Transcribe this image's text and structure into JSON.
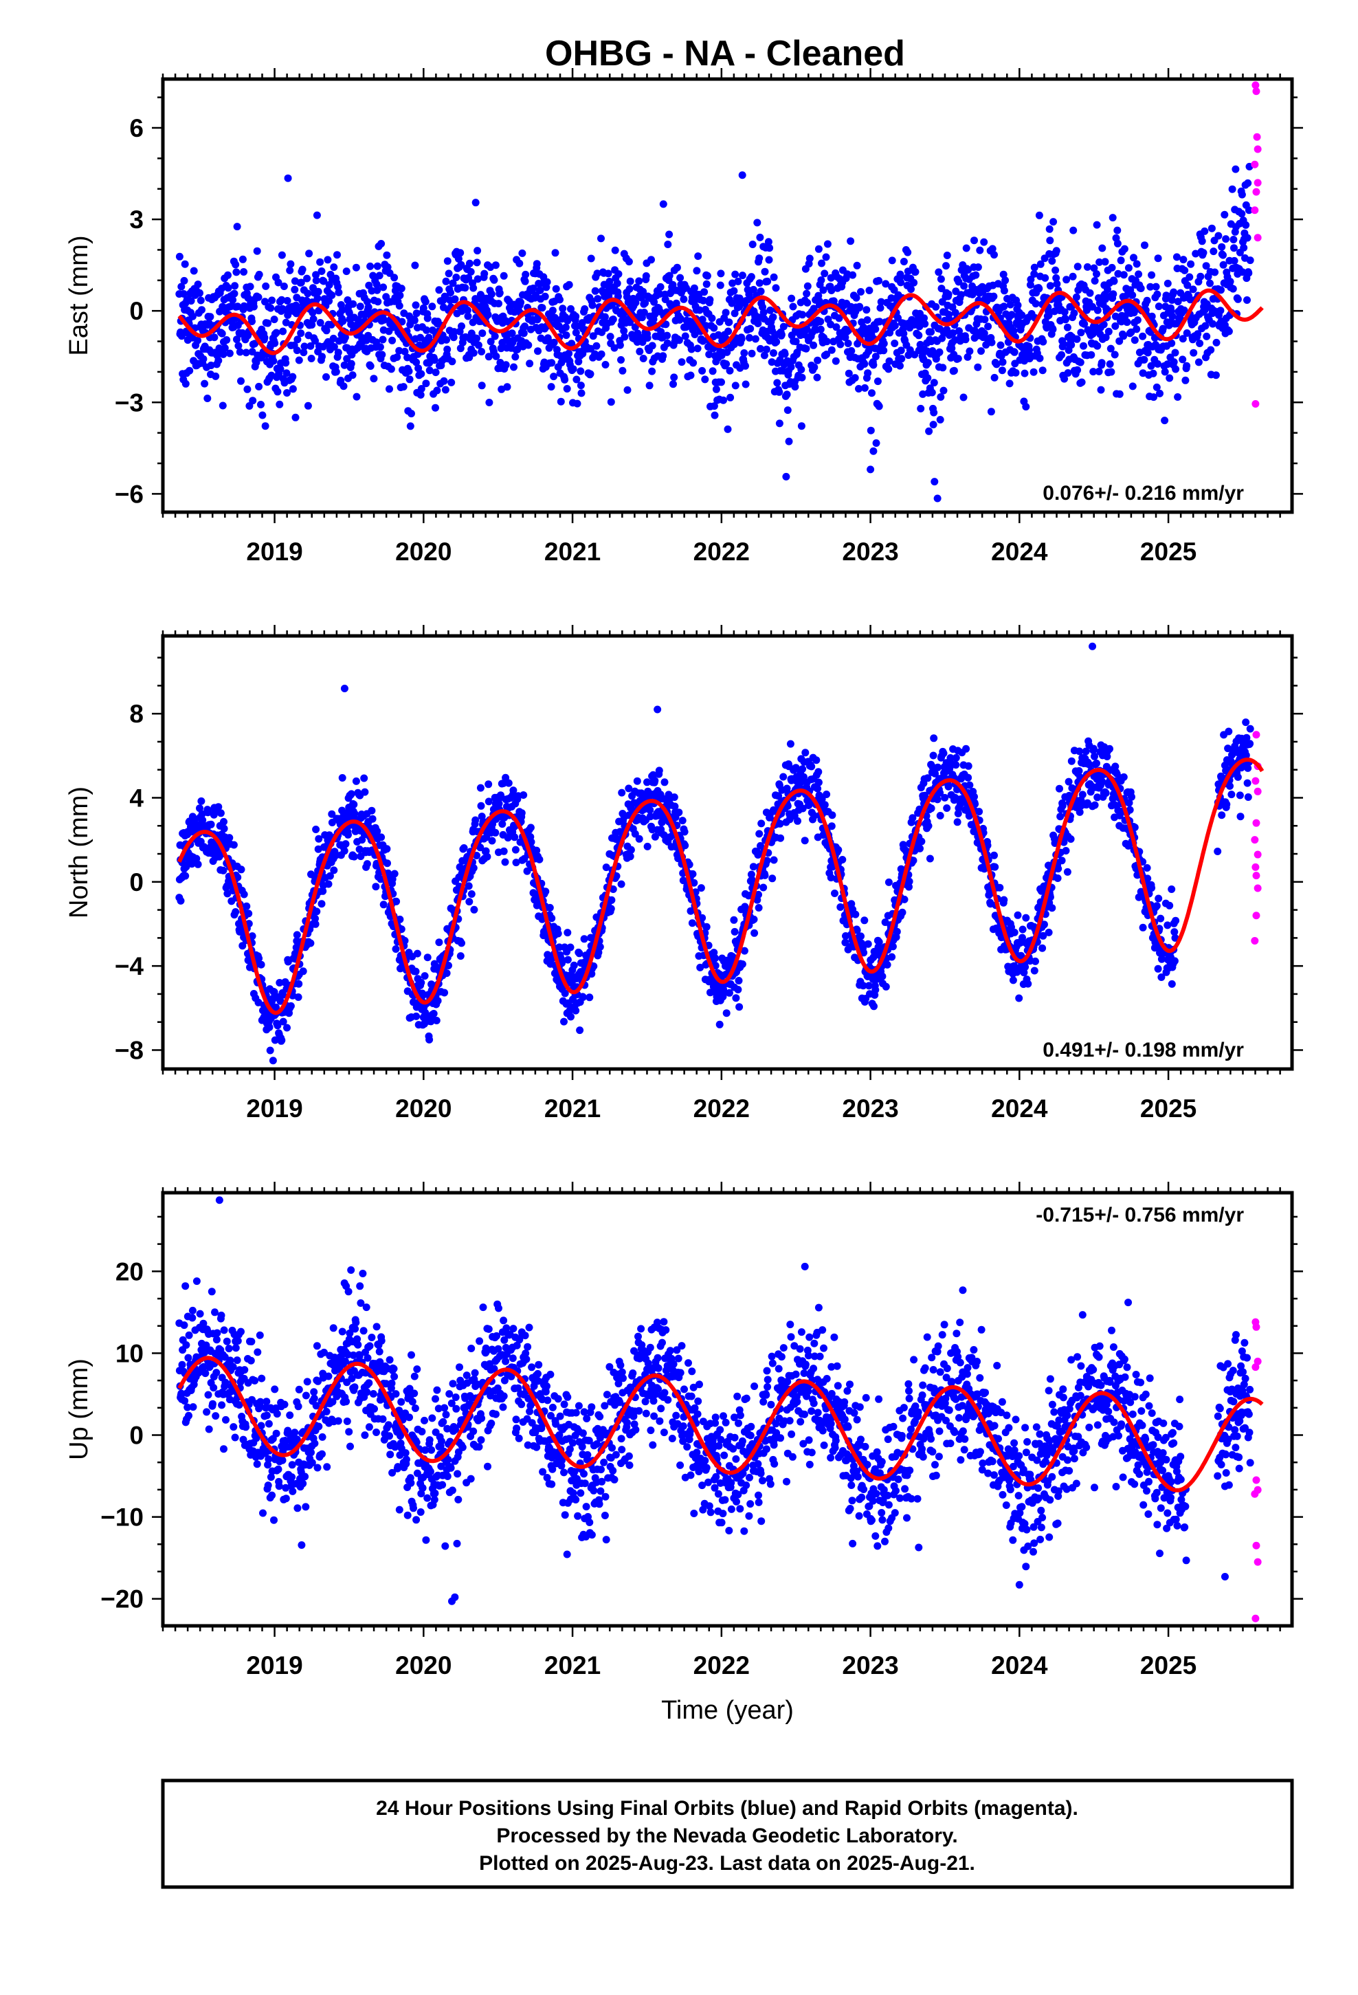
{
  "title": "OHBG  - NA - Cleaned",
  "footer": {
    "line1": "24 Hour Positions Using Final Orbits (blue) and Rapid Orbits (magenta).",
    "line2": "Processed by the Nevada Geodetic Laboratory.",
    "line3": "Plotted on 2025-Aug-23. Last data on 2025-Aug-21."
  },
  "colors": {
    "final_orbits": "#0000ff",
    "rapid_orbits": "#ff00ff",
    "model_fit": "#ff0000",
    "frame": "#000000"
  },
  "chart_data": [
    {
      "type": "scatter",
      "component": "east",
      "ylabel": "East (mm)",
      "xlabel": "",
      "xlim": [
        2018.25,
        2025.83
      ],
      "ylim": [
        -6.6,
        7.6
      ],
      "xticks": [
        2019,
        2020,
        2021,
        2022,
        2023,
        2024,
        2025
      ],
      "xtick_labels": [
        "2019",
        "2020",
        "2021",
        "2022",
        "2023",
        "2024",
        "2025"
      ],
      "yticks": [
        -6,
        -3,
        0,
        3,
        6
      ],
      "ytick_labels": [
        "−6",
        "−3",
        "0",
        "3",
        "6"
      ],
      "rate_label": "0.076+/- 0.216 mm/yr",
      "rate_position": "bottom-right",
      "data_start": 2018.36,
      "data_end": 2025.63,
      "final_end": 2025.55,
      "model": {
        "trend_mm_per_yr": 0.076,
        "offset": -0.3,
        "annual_sin": 0.15,
        "annual_cos": -0.3,
        "semiannual_sin": 0.0,
        "semiannual_cos": -0.55
      },
      "scatter_sigma": 1.05,
      "anomalies": [
        {
          "from": 2022.3,
          "to": 2022.55,
          "shift": -1.6
        },
        {
          "from": 2023.28,
          "to": 2023.5,
          "shift": -1.8
        },
        {
          "from": 2024.22,
          "to": 2024.42,
          "shift": -1.3
        },
        {
          "from": 2025.38,
          "to": 2025.63,
          "shift": 2.6
        }
      ],
      "rapid_points": [
        {
          "x": 2025.585,
          "y": 7.4
        },
        {
          "x": 2025.59,
          "y": 7.2
        },
        {
          "x": 2025.595,
          "y": 5.7
        },
        {
          "x": 2025.6,
          "y": 5.3
        },
        {
          "x": 2025.58,
          "y": 4.8
        },
        {
          "x": 2025.6,
          "y": 4.2
        },
        {
          "x": 2025.59,
          "y": 3.9
        },
        {
          "x": 2025.58,
          "y": 3.3
        },
        {
          "x": 2025.6,
          "y": 2.4
        },
        {
          "x": 2025.585,
          "y": -3.05
        }
      ],
      "notable_points": [
        {
          "x": 2019.09,
          "y": 4.35
        },
        {
          "x": 2022.14,
          "y": 4.45
        },
        {
          "x": 2023.02,
          "y": -4.6
        },
        {
          "x": 2023.0,
          "y": -5.2
        },
        {
          "x": 2023.43,
          "y": -5.6
        },
        {
          "x": 2023.45,
          "y": -6.15
        },
        {
          "x": 2020.35,
          "y": 3.55
        },
        {
          "x": 2021.61,
          "y": 3.5
        }
      ]
    },
    {
      "type": "scatter",
      "component": "north",
      "ylabel": "North (mm)",
      "xlabel": "",
      "xlim": [
        2018.25,
        2025.83
      ],
      "ylim": [
        -8.9,
        11.7
      ],
      "xticks": [
        2019,
        2020,
        2021,
        2022,
        2023,
        2024,
        2025
      ],
      "xtick_labels": [
        "2019",
        "2020",
        "2021",
        "2022",
        "2023",
        "2024",
        "2025"
      ],
      "yticks": [
        -8,
        -4,
        0,
        4,
        8
      ],
      "ytick_labels": [
        "−8",
        "−4",
        "0",
        "4",
        "8"
      ],
      "rate_label": "0.491+/- 0.198 mm/yr",
      "rate_position": "bottom-right",
      "data_start": 2018.36,
      "data_end": 2025.63,
      "final_end": 2025.55,
      "gaps": [
        [
          2025.05,
          2025.33
        ]
      ],
      "model": {
        "trend_mm_per_yr": 0.491,
        "offset": 0.15,
        "annual_sin": -0.4,
        "annual_cos": -4.4,
        "semiannual_sin": 0.0,
        "semiannual_cos": -0.5
      },
      "scatter_sigma": 0.85,
      "anomalies": [],
      "rapid_points": [
        {
          "x": 2025.59,
          "y": 7.0
        },
        {
          "x": 2025.6,
          "y": 5.5
        },
        {
          "x": 2025.585,
          "y": 4.8
        },
        {
          "x": 2025.6,
          "y": 4.3
        },
        {
          "x": 2025.59,
          "y": 2.8
        },
        {
          "x": 2025.58,
          "y": 2.0
        },
        {
          "x": 2025.6,
          "y": 1.3
        },
        {
          "x": 2025.585,
          "y": 0.7
        },
        {
          "x": 2025.59,
          "y": 0.3
        },
        {
          "x": 2025.6,
          "y": -0.3
        },
        {
          "x": 2025.59,
          "y": -1.6
        },
        {
          "x": 2025.58,
          "y": -2.8
        }
      ],
      "notable_points": [
        {
          "x": 2024.49,
          "y": 11.2
        },
        {
          "x": 2018.99,
          "y": -8.5
        },
        {
          "x": 2019.47,
          "y": 9.2
        },
        {
          "x": 2018.37,
          "y": -0.9
        },
        {
          "x": 2021.57,
          "y": 8.2
        }
      ]
    },
    {
      "type": "scatter",
      "component": "up",
      "ylabel": "Up (mm)",
      "xlabel": "Time (year)",
      "xlim": [
        2018.25,
        2025.83
      ],
      "ylim": [
        -23.3,
        29.6
      ],
      "xticks": [
        2019,
        2020,
        2021,
        2022,
        2023,
        2024,
        2025
      ],
      "xtick_labels": [
        "2019",
        "2020",
        "2021",
        "2022",
        "2023",
        "2024",
        "2025"
      ],
      "yticks": [
        -20,
        -10,
        0,
        10,
        20
      ],
      "ytick_labels": [
        "−20",
        "−10",
        "0",
        "10",
        "20"
      ],
      "rate_label": "-0.715+/- 0.756 mm/yr",
      "rate_position": "top-right",
      "data_start": 2018.36,
      "data_end": 2025.63,
      "final_end": 2025.55,
      "gaps": [
        [
          2025.12,
          2025.33
        ]
      ],
      "model": {
        "trend_mm_per_yr": -0.715,
        "offset": 1.2,
        "annual_sin": -2.0,
        "annual_cos": -5.4,
        "semiannual_sin": 0.0,
        "semiannual_cos": 0.0
      },
      "scatter_sigma": 4.0,
      "anomalies": [],
      "rapid_points": [
        {
          "x": 2025.585,
          "y": 13.8
        },
        {
          "x": 2025.59,
          "y": 13.2
        },
        {
          "x": 2025.6,
          "y": 9.0
        },
        {
          "x": 2025.585,
          "y": 8.3
        },
        {
          "x": 2025.59,
          "y": -5.5
        },
        {
          "x": 2025.6,
          "y": -6.7
        },
        {
          "x": 2025.58,
          "y": -7.2
        },
        {
          "x": 2025.59,
          "y": -13.5
        },
        {
          "x": 2025.6,
          "y": -15.5
        },
        {
          "x": 2025.585,
          "y": -22.4
        }
      ],
      "notable_points": [
        {
          "x": 2018.63,
          "y": 28.7
        },
        {
          "x": 2020.21,
          "y": -19.8
        },
        {
          "x": 2020.19,
          "y": -20.3
        },
        {
          "x": 2019.48,
          "y": 18.2
        },
        {
          "x": 2024.73,
          "y": 16.2
        },
        {
          "x": 2023.62,
          "y": 17.7
        },
        {
          "x": 2025.38,
          "y": -17.3
        }
      ]
    }
  ]
}
